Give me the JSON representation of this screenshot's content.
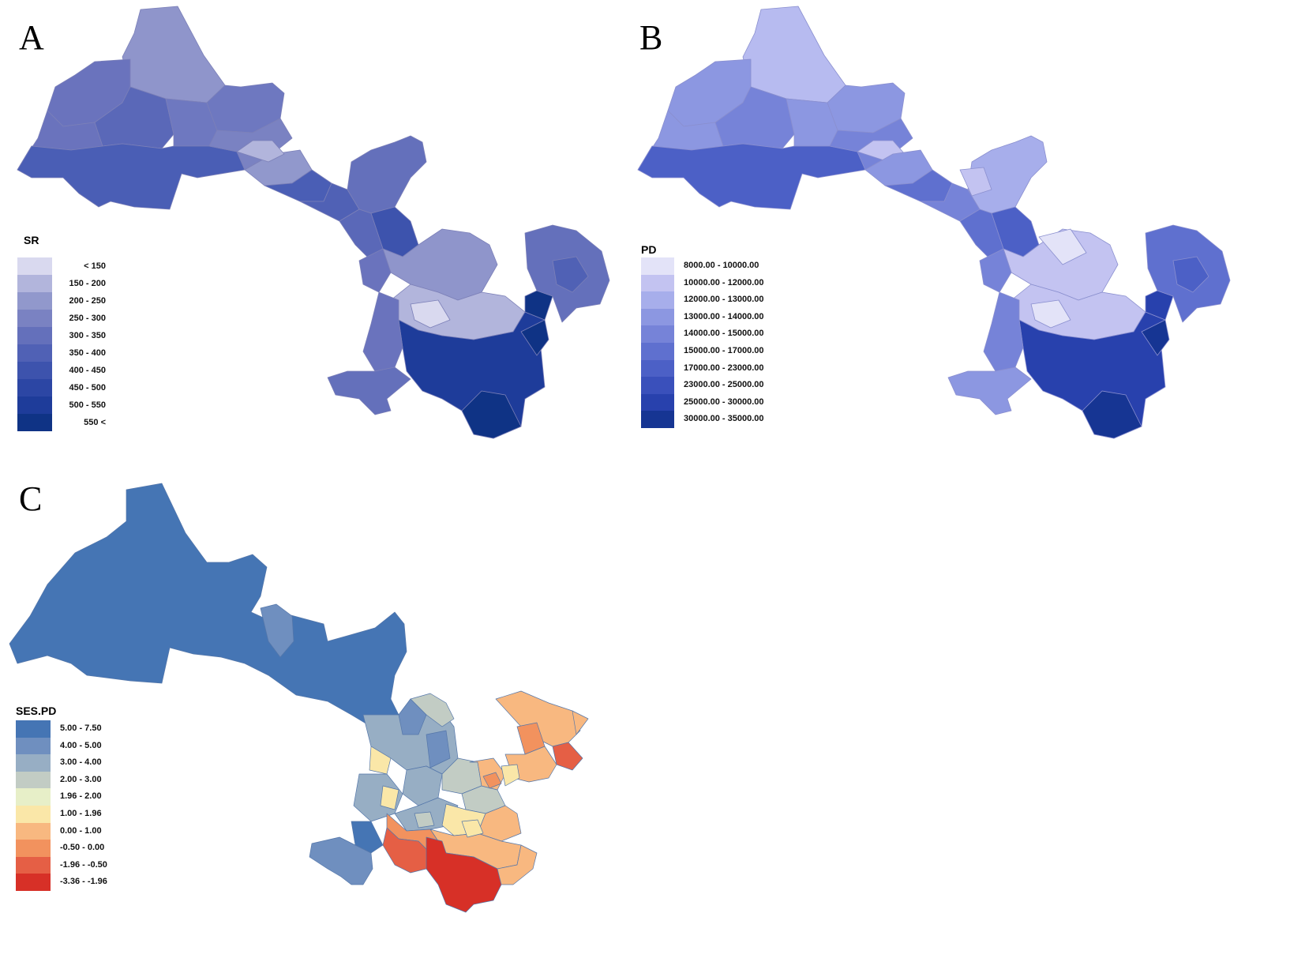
{
  "panels": {
    "A": {
      "letter": "A",
      "legend_title": "SR",
      "legend": [
        {
          "label": "< 150",
          "color": "#d9d9ef"
        },
        {
          "label": "150 - 200",
          "color": "#b2b5dc"
        },
        {
          "label": "200 - 250",
          "color": "#9198cc"
        },
        {
          "label": "250 - 300",
          "color": "#7a82c2"
        },
        {
          "label": "300 - 350",
          "color": "#6470bb"
        },
        {
          "label": "350 - 400",
          "color": "#5061b5"
        },
        {
          "label": "400 - 450",
          "color": "#3d53ad"
        },
        {
          "label": "450 - 500",
          "color": "#2c46a4"
        },
        {
          "label": "500 - 550",
          "color": "#1e3c9a"
        },
        {
          "label": "550 <",
          "color": "#0f3385"
        }
      ]
    },
    "B": {
      "letter": "B",
      "legend_title": "PD",
      "legend": [
        {
          "label": "8000.00  -  10000.00",
          "color": "#e3e3f8"
        },
        {
          "label": "10000.00  -  12000.00",
          "color": "#c3c3f1"
        },
        {
          "label": "12000.00  -  13000.00",
          "color": "#a7aeeb"
        },
        {
          "label": "13000.00  -  14000.00",
          "color": "#8c97e1"
        },
        {
          "label": "14000.00  -  15000.00",
          "color": "#7683d8"
        },
        {
          "label": "15000.00  -  17000.00",
          "color": "#5f70cf"
        },
        {
          "label": "17000.00  -  23000.00",
          "color": "#4c60c6"
        },
        {
          "label": "23000.00  -  25000.00",
          "color": "#3a50bb"
        },
        {
          "label": "25000.00  -  30000.00",
          "color": "#2841ad"
        },
        {
          "label": "30000.00  - 35000.00",
          "color": "#163593"
        }
      ]
    },
    "C": {
      "letter": "C",
      "legend_title": "SES.PD",
      "legend": [
        {
          "label": "5.00 - 7.50",
          "color": "#4575b4"
        },
        {
          "label": "4.00 - 5.00",
          "color": "#6f8fbf"
        },
        {
          "label": "3.00 - 4.00",
          "color": "#97aec4"
        },
        {
          "label": "2.00 - 3.00",
          "color": "#c2ccc4"
        },
        {
          "label": "1.96 - 2.00",
          "color": "#e7efc8"
        },
        {
          "label": "1.00 - 1.96",
          "color": "#fae7a8"
        },
        {
          "label": "0.00 - 1.00",
          "color": "#f8b880"
        },
        {
          "label": "-0.50 -  0.00",
          "color": "#f2925e"
        },
        {
          "label": "-1.96 - -0.50",
          "color": "#e55f45"
        },
        {
          "label": "-3.36 - -1.96",
          "color": "#d73027"
        }
      ]
    }
  }
}
